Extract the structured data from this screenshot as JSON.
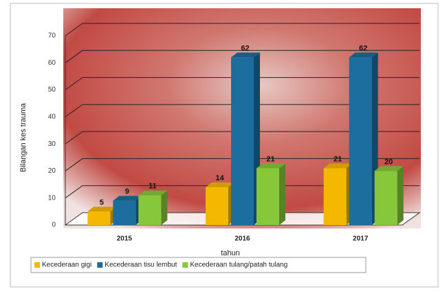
{
  "chart_data": {
    "type": "bar",
    "categories": [
      "2015",
      "2016",
      "2017"
    ],
    "series": [
      {
        "name": "Kecederaan gigi",
        "color": "#f5b800",
        "values": [
          5,
          14,
          21
        ]
      },
      {
        "name": "Kecederaan tisu lembut",
        "color": "#1b6e9e",
        "values": [
          9,
          62,
          62
        ]
      },
      {
        "name": "Kecederaan tulang/patah tulang",
        "color": "#86c83a",
        "values": [
          11,
          21,
          20
        ]
      }
    ],
    "ylabel": "Bilangan kes trauma",
    "xlabel": "tahun",
    "ylim": [
      0,
      70
    ],
    "yticks": [
      0,
      10,
      20,
      30,
      40,
      50,
      60,
      70
    ],
    "grid": true,
    "legend": "bottom"
  }
}
